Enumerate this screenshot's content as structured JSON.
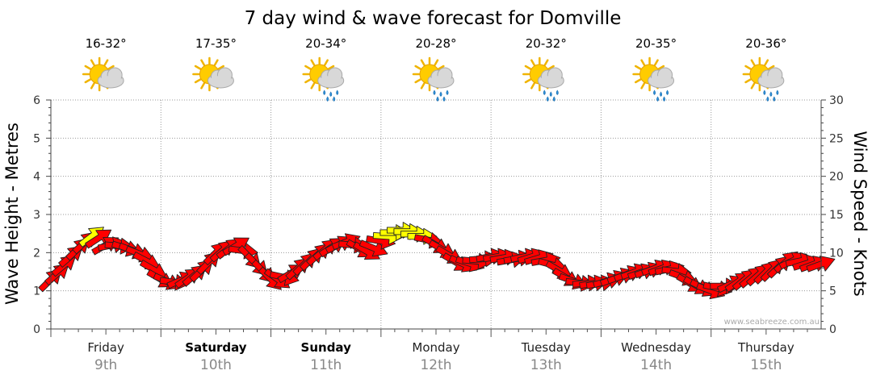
{
  "chart_data": {
    "type": "line",
    "title": "7 day wind & wave forecast for Domville",
    "ylabel_left": "Wave Height - Metres",
    "ylabel_right": "Wind Speed - Knots",
    "ylim_left": [
      0,
      6
    ],
    "ylim_right": [
      0,
      30
    ],
    "yticks_left": [
      "0",
      "1",
      "2",
      "3",
      "4",
      "5",
      "6"
    ],
    "yticks_right": [
      "0",
      "5",
      "10",
      "15",
      "20",
      "25",
      "30"
    ],
    "grid": true,
    "watermark": "www.seabreeze.com.au",
    "days": [
      {
        "name": "Friday",
        "date": "9th",
        "bold": false,
        "temp": "16-32°",
        "weather": "partly-cloudy-icon"
      },
      {
        "name": "Saturday",
        "date": "10th",
        "bold": true,
        "temp": "17-35°",
        "weather": "partly-cloudy-icon"
      },
      {
        "name": "Sunday",
        "date": "11th",
        "bold": true,
        "temp": "20-34°",
        "weather": "rain-icon"
      },
      {
        "name": "Monday",
        "date": "12th",
        "bold": false,
        "temp": "20-28°",
        "weather": "rain-icon"
      },
      {
        "name": "Tuesday",
        "date": "13th",
        "bold": false,
        "temp": "20-32°",
        "weather": "rain-icon"
      },
      {
        "name": "Wednesday",
        "date": "14th",
        "bold": false,
        "temp": "20-35°",
        "weather": "rain-icon"
      },
      {
        "name": "Thursday",
        "date": "15th",
        "bold": false,
        "temp": "20-36°",
        "weather": "rain-icon"
      }
    ],
    "series": [
      {
        "name": "Wind",
        "unit": "knots",
        "colors": {
          "low": "#ff0000",
          "high": "#ffff00"
        },
        "points": [
          {
            "t": 0.0,
            "speed": 6.5,
            "dir": 225
          },
          {
            "t": 0.08,
            "speed": 7.5,
            "dir": 230
          },
          {
            "t": 0.18,
            "speed": 9.5,
            "dir": 230
          },
          {
            "t": 0.28,
            "speed": 11.0,
            "dir": 225
          },
          {
            "t": 0.4,
            "speed": 12.5,
            "dir": 235
          },
          {
            "t": 0.5,
            "speed": 11.0,
            "dir": 240
          },
          {
            "t": 0.6,
            "speed": 11.0,
            "dir": 270
          },
          {
            "t": 0.7,
            "speed": 10.5,
            "dir": 290
          },
          {
            "t": 0.8,
            "speed": 10.0,
            "dir": 290
          },
          {
            "t": 0.9,
            "speed": 8.5,
            "dir": 300
          },
          {
            "t": 1.0,
            "speed": 6.5,
            "dir": 300
          },
          {
            "t": 1.1,
            "speed": 6.0,
            "dir": 290
          },
          {
            "t": 1.2,
            "speed": 6.5,
            "dir": 240
          },
          {
            "t": 1.3,
            "speed": 7.0,
            "dir": 230
          },
          {
            "t": 1.4,
            "speed": 8.0,
            "dir": 225
          },
          {
            "t": 1.5,
            "speed": 10.0,
            "dir": 225
          },
          {
            "t": 1.6,
            "speed": 10.5,
            "dir": 230
          },
          {
            "t": 1.7,
            "speed": 11.0,
            "dir": 240
          },
          {
            "t": 1.8,
            "speed": 9.5,
            "dir": 315
          },
          {
            "t": 1.9,
            "speed": 8.0,
            "dir": 315
          },
          {
            "t": 2.0,
            "speed": 6.5,
            "dir": 315
          },
          {
            "t": 2.1,
            "speed": 6.5,
            "dir": 300
          },
          {
            "t": 2.2,
            "speed": 7.5,
            "dir": 230
          },
          {
            "t": 2.3,
            "speed": 8.5,
            "dir": 225
          },
          {
            "t": 2.4,
            "speed": 9.5,
            "dir": 225
          },
          {
            "t": 2.5,
            "speed": 10.5,
            "dir": 230
          },
          {
            "t": 2.6,
            "speed": 11.0,
            "dir": 240
          },
          {
            "t": 2.7,
            "speed": 11.5,
            "dir": 250
          },
          {
            "t": 2.8,
            "speed": 10.5,
            "dir": 300
          },
          {
            "t": 2.9,
            "speed": 10.0,
            "dir": 300
          },
          {
            "t": 3.0,
            "speed": 11.5,
            "dir": 280
          },
          {
            "t": 3.1,
            "speed": 12.5,
            "dir": 270
          },
          {
            "t": 3.2,
            "speed": 13.0,
            "dir": 270
          },
          {
            "t": 3.3,
            "speed": 12.5,
            "dir": 270
          },
          {
            "t": 3.4,
            "speed": 12.0,
            "dir": 270
          },
          {
            "t": 3.5,
            "speed": 11.0,
            "dir": 300
          },
          {
            "t": 3.6,
            "speed": 10.0,
            "dir": 300
          },
          {
            "t": 3.7,
            "speed": 8.5,
            "dir": 300
          },
          {
            "t": 3.8,
            "speed": 8.5,
            "dir": 290
          },
          {
            "t": 3.9,
            "speed": 9.0,
            "dir": 270
          },
          {
            "t": 4.0,
            "speed": 9.5,
            "dir": 260
          },
          {
            "t": 4.1,
            "speed": 9.5,
            "dir": 260
          },
          {
            "t": 4.2,
            "speed": 9.0,
            "dir": 260
          },
          {
            "t": 4.3,
            "speed": 9.5,
            "dir": 260
          },
          {
            "t": 4.4,
            "speed": 9.5,
            "dir": 250
          },
          {
            "t": 4.5,
            "speed": 9.0,
            "dir": 260
          },
          {
            "t": 4.6,
            "speed": 8.0,
            "dir": 300
          },
          {
            "t": 4.7,
            "speed": 6.5,
            "dir": 300
          },
          {
            "t": 4.8,
            "speed": 6.0,
            "dir": 280
          },
          {
            "t": 4.9,
            "speed": 6.0,
            "dir": 260
          },
          {
            "t": 5.0,
            "speed": 6.0,
            "dir": 260
          },
          {
            "t": 5.1,
            "speed": 6.5,
            "dir": 250
          },
          {
            "t": 5.2,
            "speed": 7.0,
            "dir": 250
          },
          {
            "t": 5.3,
            "speed": 7.5,
            "dir": 250
          },
          {
            "t": 5.4,
            "speed": 7.5,
            "dir": 250
          },
          {
            "t": 5.5,
            "speed": 8.0,
            "dir": 250
          },
          {
            "t": 5.6,
            "speed": 8.0,
            "dir": 250
          },
          {
            "t": 5.7,
            "speed": 7.5,
            "dir": 280
          },
          {
            "t": 5.8,
            "speed": 6.0,
            "dir": 300
          },
          {
            "t": 5.9,
            "speed": 5.5,
            "dir": 300
          },
          {
            "t": 6.0,
            "speed": 5.0,
            "dir": 290
          },
          {
            "t": 6.1,
            "speed": 5.5,
            "dir": 280
          },
          {
            "t": 6.2,
            "speed": 6.0,
            "dir": 240
          },
          {
            "t": 6.3,
            "speed": 6.5,
            "dir": 230
          },
          {
            "t": 6.4,
            "speed": 7.0,
            "dir": 230
          },
          {
            "t": 6.5,
            "speed": 7.5,
            "dir": 225
          },
          {
            "t": 6.6,
            "speed": 8.0,
            "dir": 225
          },
          {
            "t": 6.7,
            "speed": 9.0,
            "dir": 230
          },
          {
            "t": 6.8,
            "speed": 9.0,
            "dir": 260
          },
          {
            "t": 6.9,
            "speed": 8.5,
            "dir": 250
          },
          {
            "t": 7.0,
            "speed": 8.5,
            "dir": 250
          }
        ]
      },
      {
        "name": "Wave",
        "unit": "metres",
        "peaks": [
          {
            "t": 0.6,
            "height": 2.5
          },
          {
            "t": 3.1,
            "height": 2.8
          },
          {
            "t": 3.2,
            "height": 2.7
          }
        ]
      }
    ]
  }
}
